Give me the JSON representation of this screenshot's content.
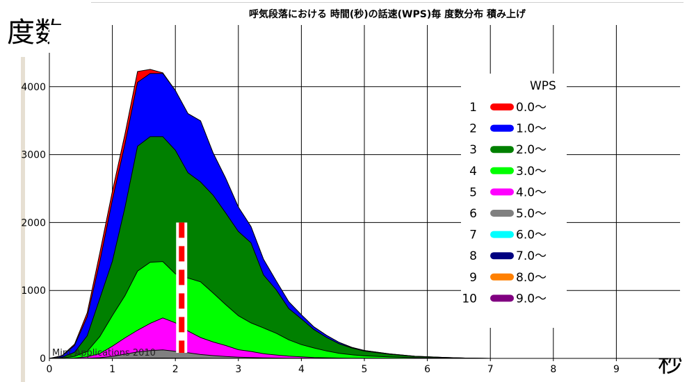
{
  "ylabel": "度数",
  "xlabel": "秒",
  "chart_data": {
    "type": "area",
    "stacked": true,
    "title": "呼気段落における 時間(秒)の話速(WPS)毎 度数分布 積み上げ",
    "xlim": [
      0,
      9.5
    ],
    "ylim": [
      0,
      4500
    ],
    "xticks": [
      "0",
      "1",
      "2",
      "3",
      "4",
      "5",
      "6",
      "7",
      "8",
      "9"
    ],
    "yticks": [
      "0",
      "1000",
      "2000",
      "3000",
      "4000"
    ],
    "grid": true,
    "x": [
      0,
      0.2,
      0.4,
      0.6,
      0.8,
      1.0,
      1.2,
      1.4,
      1.6,
      1.8,
      2.0,
      2.2,
      2.4,
      2.6,
      2.8,
      3.0,
      3.2,
      3.4,
      3.6,
      3.8,
      4.0,
      4.2,
      4.4,
      4.6,
      4.8,
      5.0,
      5.4,
      5.8,
      6.2,
      6.6,
      7.0,
      7.5,
      8.0,
      8.5,
      9.0,
      9.5
    ],
    "series": [
      {
        "name": "9.0〜",
        "color": "#800080",
        "values": [
          0,
          0,
          0,
          0,
          0,
          0,
          0,
          0,
          0,
          0,
          0,
          0,
          0,
          0,
          0,
          0,
          0,
          0,
          0,
          0,
          0,
          0,
          0,
          0,
          0,
          0,
          0,
          0,
          0,
          0,
          0,
          0,
          0,
          0,
          0,
          0
        ]
      },
      {
        "name": "8.0〜",
        "color": "#ff8000",
        "values": [
          0,
          0,
          0,
          0,
          0,
          0,
          0,
          0,
          0,
          0,
          0,
          0,
          0,
          0,
          0,
          0,
          0,
          0,
          0,
          0,
          0,
          0,
          0,
          0,
          0,
          0,
          0,
          0,
          0,
          0,
          0,
          0,
          0,
          0,
          0,
          0
        ]
      },
      {
        "name": "7.0〜",
        "color": "#000080",
        "values": [
          0,
          0,
          0,
          0,
          0,
          0,
          0,
          0,
          0,
          0,
          0,
          0,
          0,
          0,
          0,
          0,
          0,
          0,
          0,
          0,
          0,
          0,
          0,
          0,
          0,
          0,
          0,
          0,
          0,
          0,
          0,
          0,
          0,
          0,
          0,
          0
        ]
      },
      {
        "name": "6.0〜",
        "color": "#00ffff",
        "values": [
          0,
          0,
          0,
          0,
          0,
          0,
          2,
          4,
          5,
          5,
          4,
          3,
          2,
          1,
          1,
          0,
          0,
          0,
          0,
          0,
          0,
          0,
          0,
          0,
          0,
          0,
          0,
          0,
          0,
          0,
          0,
          0,
          0,
          0,
          0,
          0
        ]
      },
      {
        "name": "5.0〜",
        "color": "#808080",
        "values": [
          0,
          0,
          0,
          2,
          10,
          30,
          60,
          90,
          110,
          120,
          100,
          80,
          55,
          40,
          28,
          18,
          12,
          8,
          5,
          3,
          2,
          1,
          1,
          0,
          0,
          0,
          0,
          0,
          0,
          0,
          0,
          0,
          0,
          0,
          0,
          0
        ]
      },
      {
        "name": "4.0〜",
        "color": "#ff00ff",
        "values": [
          0,
          0,
          5,
          20,
          60,
          150,
          240,
          320,
          400,
          470,
          420,
          320,
          250,
          200,
          160,
          110,
          90,
          60,
          45,
          30,
          20,
          12,
          8,
          5,
          3,
          2,
          1,
          0,
          0,
          0,
          0,
          0,
          0,
          0,
          0,
          0
        ]
      },
      {
        "name": "3.0〜",
        "color": "#00ff00",
        "values": [
          0,
          5,
          25,
          80,
          250,
          450,
          620,
          870,
          900,
          830,
          720,
          780,
          820,
          720,
          600,
          500,
          420,
          380,
          320,
          240,
          180,
          140,
          100,
          70,
          50,
          35,
          20,
          10,
          5,
          2,
          0,
          0,
          0,
          0,
          0,
          0
        ]
      },
      {
        "name": "2.0〜",
        "color": "#008000",
        "values": [
          0,
          10,
          60,
          230,
          560,
          800,
          1300,
          1840,
          1850,
          1840,
          1820,
          1550,
          1470,
          1440,
          1350,
          1240,
          1180,
          780,
          640,
          460,
          380,
          270,
          200,
          140,
          100,
          70,
          40,
          20,
          10,
          3,
          0,
          0,
          0,
          0,
          0,
          0
        ]
      },
      {
        "name": "1.0〜",
        "color": "#0000ff",
        "values": [
          0,
          20,
          100,
          280,
          540,
          900,
          930,
          940,
          930,
          930,
          880,
          870,
          900,
          620,
          510,
          360,
          240,
          230,
          130,
          100,
          60,
          40,
          30,
          20,
          10,
          10,
          5,
          2,
          1,
          0,
          0,
          0,
          0,
          0,
          0,
          0
        ]
      },
      {
        "name": "0.0〜",
        "color": "#ff0000",
        "values": [
          0,
          5,
          20,
          60,
          130,
          130,
          150,
          160,
          60,
          10,
          0,
          0,
          0,
          0,
          0,
          0,
          0,
          0,
          0,
          0,
          0,
          0,
          0,
          0,
          0,
          0,
          0,
          0,
          0,
          0,
          0,
          0,
          0,
          0,
          0,
          0
        ]
      }
    ],
    "legend": {
      "title": "WPS",
      "position": "right",
      "numbers": [
        "1",
        "2",
        "3",
        "4",
        "5",
        "6",
        "7",
        "8",
        "9",
        "10"
      ],
      "labels": [
        "0.0〜",
        "1.0〜",
        "2.0〜",
        "3.0〜",
        "4.0〜",
        "5.0〜",
        "6.0〜",
        "7.0〜",
        "8.0〜",
        "9.0〜"
      ],
      "colors": [
        "#ff0000",
        "#0000ff",
        "#008000",
        "#00ff00",
        "#ff00ff",
        "#808080",
        "#00ffff",
        "#000080",
        "#ff8000",
        "#800080"
      ]
    },
    "annotation_marker": {
      "x": 2.1,
      "y": 2000,
      "style": "red-white-dashed-bar"
    },
    "watermark": "Mint Applications 2010"
  }
}
